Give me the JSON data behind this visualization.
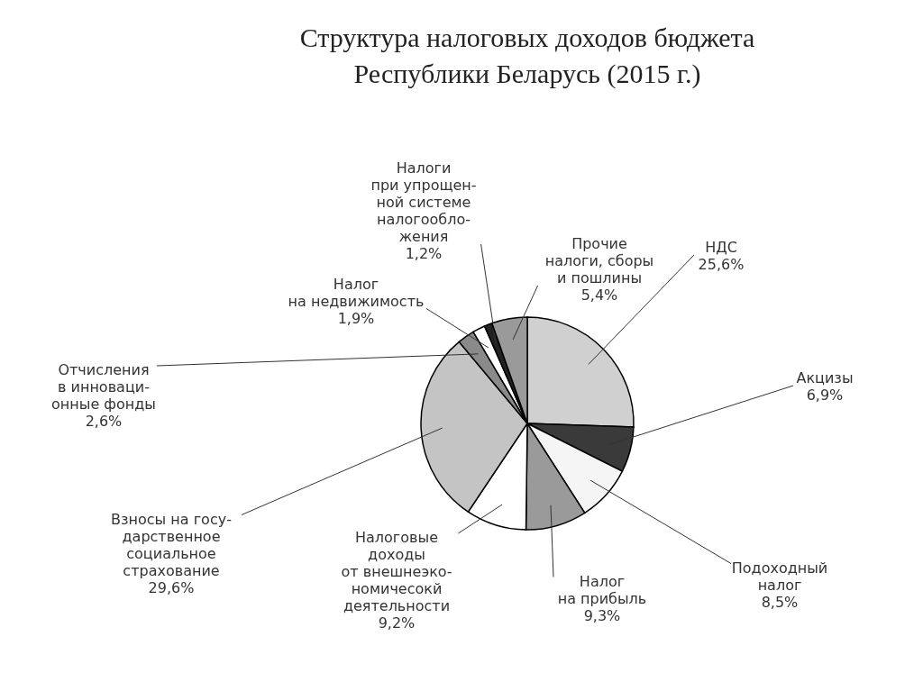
{
  "chart_data": {
    "type": "pie",
    "title": "Структура налоговых доходов бюджета\nРеспублики Беларусь (2015 г.)",
    "categories": [
      "НДС",
      "Акцизы",
      "Подоходный\nналог",
      "Налог\nна прибыль",
      "Налоговые\nдоходы\nот внешнеэко-\nномичесокй\nдеятельности",
      "Взносы на госу-\nдарственное\nсоциальное\nстрахование",
      "Отчисления\nв инноваци-\nонные фонды",
      "Налог\nна недвижимость",
      "Налоги\nпри упрощен-\nной системе\nналогообло-\nжения",
      "Прочие\nналоги, сборы\nи пошлины"
    ],
    "values": [
      25.6,
      6.9,
      8.5,
      9.3,
      9.2,
      29.6,
      2.6,
      1.9,
      1.2,
      5.4
    ],
    "value_labels": [
      "25,6%",
      "6,9%",
      "8,5%",
      "9,3%",
      "9,2%",
      "29,6%",
      "2,6%",
      "1,9%",
      "1,2%",
      "5,4%"
    ],
    "colors": [
      "#d0d0d0",
      "#3a3a3a",
      "#f5f5f5",
      "#9a9a9a",
      "#ffffff",
      "#c4c4c4",
      "#8a8a8a",
      "#ffffff",
      "#222222",
      "#9a9a9a"
    ]
  }
}
